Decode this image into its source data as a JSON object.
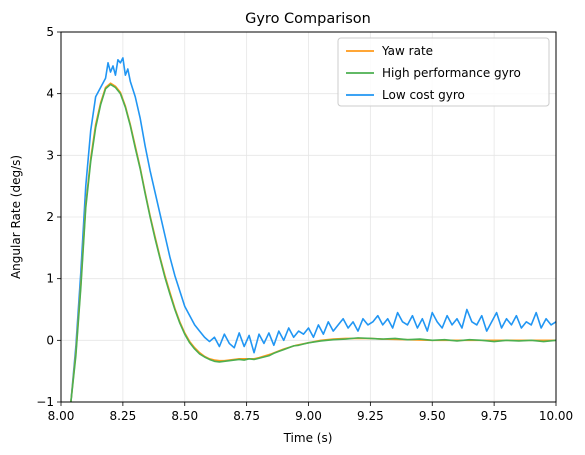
{
  "chart_data": {
    "type": "line",
    "title": "Gyro Comparison",
    "xlabel": "Time (s)",
    "ylabel": "Angular Rate (deg/s)",
    "xlim": [
      8.0,
      10.0
    ],
    "ylim": [
      -1,
      5
    ],
    "xticks": [
      8.0,
      8.25,
      8.5,
      8.75,
      9.0,
      9.25,
      9.5,
      9.75,
      10.0
    ],
    "xtick_labels": [
      "8.00",
      "8.25",
      "8.50",
      "8.75",
      "9.00",
      "9.25",
      "9.50",
      "9.75",
      "10.00"
    ],
    "yticks": [
      -1,
      0,
      1,
      2,
      3,
      4,
      5
    ],
    "ytick_labels": [
      "−1",
      "0",
      "1",
      "2",
      "3",
      "4",
      "5"
    ],
    "grid": true,
    "legend_position": "top-right",
    "series": [
      {
        "name": "Yaw rate",
        "color": "#ff9a1a",
        "x": [
          8.04,
          8.06,
          8.08,
          8.1,
          8.12,
          8.14,
          8.16,
          8.18,
          8.2,
          8.22,
          8.24,
          8.26,
          8.28,
          8.3,
          8.32,
          8.34,
          8.36,
          8.38,
          8.4,
          8.42,
          8.44,
          8.46,
          8.48,
          8.5,
          8.52,
          8.54,
          8.56,
          8.58,
          8.6,
          8.62,
          8.64,
          8.66,
          8.68,
          8.7,
          8.72,
          8.74,
          8.76,
          8.78,
          8.8,
          8.85,
          8.9,
          8.95,
          9.0,
          9.05,
          9.1,
          9.15,
          9.2,
          9.25,
          9.3,
          9.4,
          9.5,
          9.6,
          9.7,
          9.8,
          9.9,
          10.0
        ],
        "y": [
          -1.0,
          -0.2,
          0.9,
          2.2,
          2.95,
          3.5,
          3.85,
          4.1,
          4.17,
          4.12,
          4.02,
          3.8,
          3.5,
          3.15,
          2.8,
          2.4,
          2.02,
          1.68,
          1.35,
          1.05,
          0.78,
          0.52,
          0.3,
          0.12,
          -0.02,
          -0.12,
          -0.2,
          -0.26,
          -0.3,
          -0.32,
          -0.33,
          -0.33,
          -0.32,
          -0.31,
          -0.3,
          -0.3,
          -0.3,
          -0.3,
          -0.28,
          -0.22,
          -0.14,
          -0.08,
          -0.04,
          0.0,
          0.02,
          0.03,
          0.03,
          0.03,
          0.02,
          0.01,
          0.0,
          0.0,
          0.0,
          0.0,
          0.0,
          0.0
        ]
      },
      {
        "name": "High performance gyro",
        "color": "#4caf50",
        "x": [
          8.04,
          8.06,
          8.08,
          8.1,
          8.12,
          8.14,
          8.16,
          8.18,
          8.2,
          8.22,
          8.24,
          8.26,
          8.28,
          8.3,
          8.32,
          8.34,
          8.36,
          8.38,
          8.4,
          8.42,
          8.44,
          8.46,
          8.48,
          8.5,
          8.52,
          8.54,
          8.56,
          8.58,
          8.6,
          8.62,
          8.64,
          8.66,
          8.68,
          8.7,
          8.72,
          8.74,
          8.76,
          8.78,
          8.8,
          8.82,
          8.84,
          8.86,
          8.88,
          8.9,
          8.92,
          8.94,
          8.96,
          8.98,
          9.0,
          9.05,
          9.1,
          9.15,
          9.2,
          9.25,
          9.3,
          9.35,
          9.4,
          9.45,
          9.5,
          9.55,
          9.6,
          9.65,
          9.7,
          9.75,
          9.8,
          9.85,
          9.9,
          9.95,
          10.0
        ],
        "y": [
          -1.0,
          -0.25,
          0.85,
          2.15,
          2.9,
          3.45,
          3.82,
          4.08,
          4.15,
          4.1,
          4.0,
          3.78,
          3.48,
          3.12,
          2.78,
          2.38,
          2.0,
          1.65,
          1.33,
          1.02,
          0.75,
          0.5,
          0.28,
          0.1,
          -0.04,
          -0.14,
          -0.22,
          -0.27,
          -0.31,
          -0.34,
          -0.35,
          -0.34,
          -0.33,
          -0.32,
          -0.31,
          -0.32,
          -0.3,
          -0.31,
          -0.29,
          -0.27,
          -0.25,
          -0.21,
          -0.18,
          -0.15,
          -0.12,
          -0.09,
          -0.08,
          -0.06,
          -0.04,
          -0.01,
          0.01,
          0.02,
          0.04,
          0.03,
          0.02,
          0.03,
          0.01,
          0.02,
          0.0,
          0.01,
          -0.01,
          0.01,
          0.0,
          -0.02,
          0.0,
          -0.01,
          0.0,
          -0.02,
          0.0
        ]
      },
      {
        "name": "Low cost gyro",
        "color": "#2196f3",
        "x": [
          8.04,
          8.06,
          8.08,
          8.1,
          8.12,
          8.14,
          8.16,
          8.18,
          8.19,
          8.2,
          8.21,
          8.22,
          8.23,
          8.24,
          8.25,
          8.26,
          8.27,
          8.28,
          8.3,
          8.32,
          8.34,
          8.36,
          8.38,
          8.4,
          8.42,
          8.44,
          8.46,
          8.48,
          8.5,
          8.52,
          8.54,
          8.56,
          8.58,
          8.6,
          8.62,
          8.64,
          8.66,
          8.68,
          8.7,
          8.72,
          8.74,
          8.76,
          8.78,
          8.8,
          8.82,
          8.84,
          8.86,
          8.88,
          8.9,
          8.92,
          8.94,
          8.96,
          8.98,
          9.0,
          9.02,
          9.04,
          9.06,
          9.08,
          9.1,
          9.12,
          9.14,
          9.16,
          9.18,
          9.2,
          9.22,
          9.24,
          9.26,
          9.28,
          9.3,
          9.32,
          9.34,
          9.36,
          9.38,
          9.4,
          9.42,
          9.44,
          9.46,
          9.48,
          9.5,
          9.52,
          9.54,
          9.56,
          9.58,
          9.6,
          9.62,
          9.64,
          9.66,
          9.68,
          9.7,
          9.72,
          9.74,
          9.76,
          9.78,
          9.8,
          9.82,
          9.84,
          9.86,
          9.88,
          9.9,
          9.92,
          9.94,
          9.96,
          9.98,
          10.0
        ],
        "y": [
          -1.0,
          -0.1,
          1.1,
          2.5,
          3.4,
          3.95,
          4.1,
          4.25,
          4.5,
          4.35,
          4.45,
          4.3,
          4.55,
          4.5,
          4.58,
          4.3,
          4.4,
          4.2,
          3.95,
          3.6,
          3.15,
          2.75,
          2.4,
          2.05,
          1.7,
          1.35,
          1.05,
          0.8,
          0.55,
          0.4,
          0.25,
          0.15,
          0.05,
          -0.02,
          0.05,
          -0.1,
          0.1,
          -0.05,
          -0.12,
          0.12,
          -0.1,
          0.08,
          -0.2,
          0.1,
          -0.05,
          0.12,
          -0.08,
          0.15,
          0.0,
          0.2,
          0.05,
          0.15,
          0.1,
          0.2,
          0.05,
          0.25,
          0.1,
          0.3,
          0.15,
          0.25,
          0.35,
          0.2,
          0.3,
          0.15,
          0.35,
          0.25,
          0.3,
          0.4,
          0.25,
          0.35,
          0.2,
          0.45,
          0.3,
          0.25,
          0.4,
          0.2,
          0.35,
          0.15,
          0.45,
          0.3,
          0.2,
          0.4,
          0.25,
          0.35,
          0.2,
          0.5,
          0.3,
          0.25,
          0.4,
          0.15,
          0.3,
          0.45,
          0.2,
          0.35,
          0.25,
          0.4,
          0.2,
          0.3,
          0.25,
          0.45,
          0.2,
          0.35,
          0.25,
          0.3
        ]
      }
    ]
  }
}
